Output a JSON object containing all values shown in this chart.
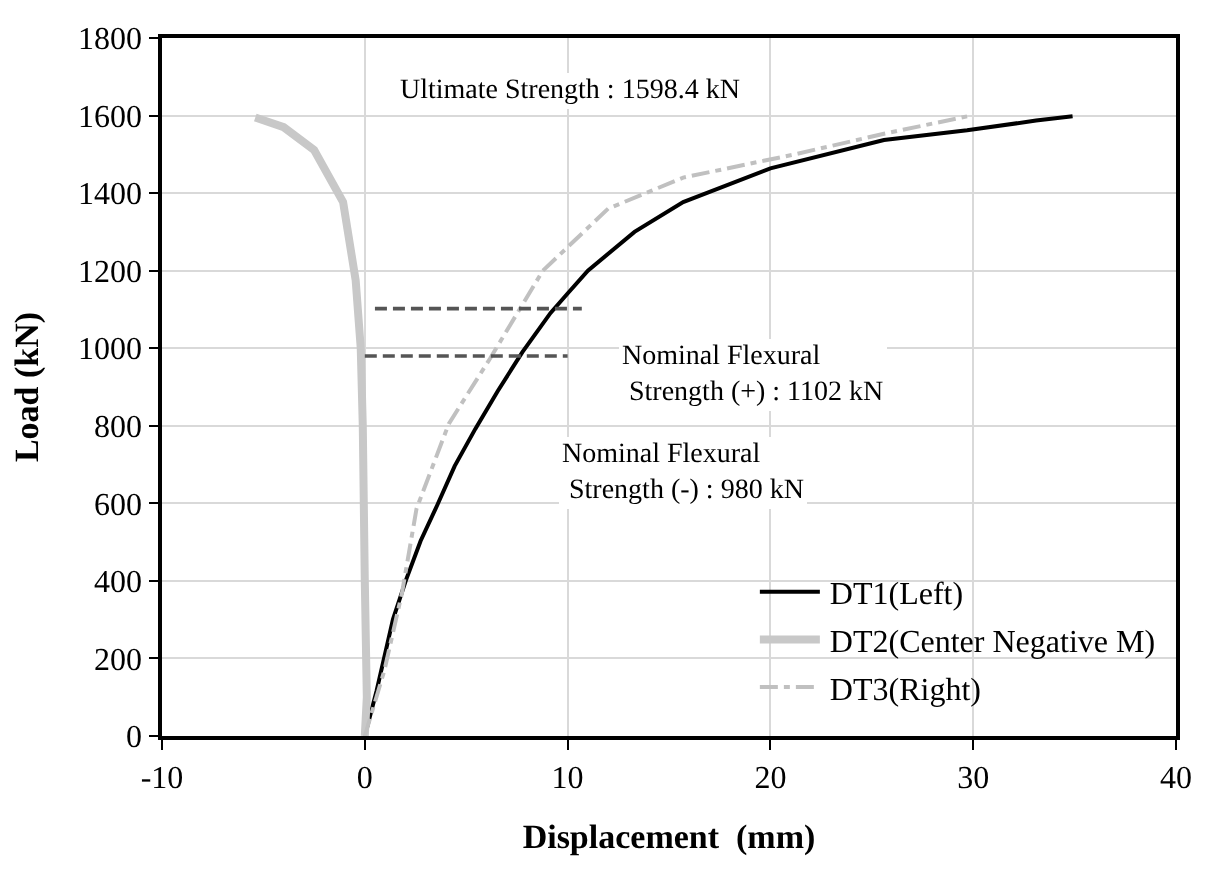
{
  "chart_data": {
    "type": "line",
    "xlabel": "Displacement  (mm)",
    "ylabel": "Load (kN)",
    "xlim": [
      -10,
      40
    ],
    "xticks": [
      -10,
      0,
      10,
      20,
      30,
      40
    ],
    "ylim": [
      0,
      1800
    ],
    "yticks": [
      0,
      200,
      400,
      600,
      800,
      1000,
      1200,
      1400,
      1600,
      1800
    ],
    "grid": true,
    "legend": "bottom right",
    "marker": "none",
    "series": [
      {
        "name": "DT1(Left)",
        "color": "#000000",
        "line_style": "solid",
        "x": [
          0,
          0.58,
          1.39,
          2.03,
          2.75,
          3.57,
          4.43,
          5.45,
          6.55,
          7.77,
          9.16,
          10.0,
          11.0,
          13.3,
          15.7,
          20.0,
          25.6,
          29.7,
          33.1,
          34.9
        ],
        "values": [
          0,
          116,
          301,
          402,
          503,
          595,
          696,
          792,
          889,
          990,
          1091,
          1141,
          1200,
          1300,
          1377,
          1464,
          1537,
          1562,
          1587,
          1598
        ]
      },
      {
        "name": "DT2(Center Negative M)",
        "color": "#c8c8c8",
        "line_style": "solid",
        "x": [
          0,
          0.1,
          0.0,
          -0.1,
          -0.2,
          -0.45,
          -1.07,
          -2.5,
          -4.0,
          -5.4
        ],
        "values": [
          0,
          100,
          400,
          800,
          1000,
          1175,
          1377,
          1511,
          1570,
          1595
        ]
      },
      {
        "name": "DT3(Right)",
        "color": "#c0c0c0",
        "line_style": "dashdot",
        "x": [
          0,
          0.96,
          1.83,
          2.55,
          4.14,
          6.17,
          8.78,
          12.0,
          15.7,
          21.2,
          25.6,
          29.7
        ],
        "values": [
          0,
          168,
          368,
          586,
          805,
          973,
          1200,
          1360,
          1440,
          1500,
          1553,
          1598
        ]
      },
      {
        "color": "#555555",
        "line_style": "dashed",
        "x": [
          0.5,
          10.7
        ],
        "values": [
          1102,
          1102
        ]
      },
      {
        "color": "#555555",
        "line_style": "dashed",
        "x": [
          0,
          10
        ],
        "values": [
          980,
          980
        ]
      }
    ],
    "annotations": [
      "Ultimate Strength : 1598.4 kN",
      "Nominal Flexural\n Strength (+) : 1102 kN",
      "Nominal Flexural\n Strength (-) : 980 kN"
    ]
  }
}
